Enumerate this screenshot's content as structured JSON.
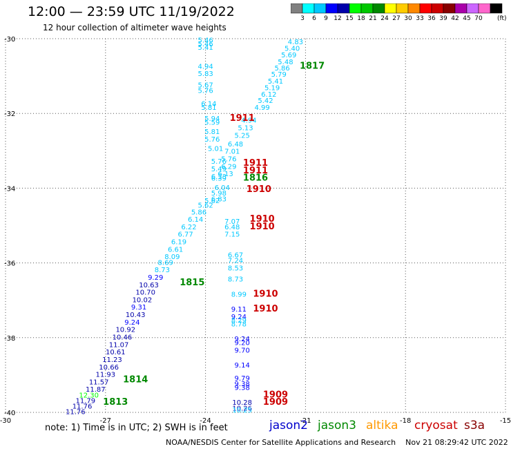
{
  "header": {
    "title": "12:00 — 23:59 UTC 11/19/2022",
    "subtitle": "12 hour collection of altimeter wave heights"
  },
  "colorbar": {
    "ticks": [
      "3",
      "6",
      "9",
      "12",
      "15",
      "18",
      "21",
      "24",
      "27",
      "30",
      "33",
      "36",
      "39",
      "42",
      "45",
      "70"
    ],
    "unit": "(ft)",
    "colors": [
      "#808080",
      "#00ffff",
      "#00c8ff",
      "#0000ff",
      "#0000aa",
      "#00ff00",
      "#00c800",
      "#008800",
      "#ffff00",
      "#ffcc00",
      "#ff8800",
      "#ff0000",
      "#cc0000",
      "#880000",
      "#aa00aa",
      "#cc66ff",
      "#ff66cc",
      "#000000"
    ]
  },
  "note": "note:  1) Time is in UTC;  2) SWH is in feet",
  "footer": "NOAA/NESDIS Center for Satellite Applications and Research    Nov 21 08:29:42 UTC 2022",
  "legend": [
    {
      "name": "jason2",
      "color": "#0000cc"
    },
    {
      "name": "jason3",
      "color": "#008800"
    },
    {
      "name": "altika",
      "color": "#ff9900"
    },
    {
      "name": "cryosat",
      "color": "#cc0000"
    },
    {
      "name": "s3a",
      "color": "#880000"
    }
  ],
  "chart_data": {
    "type": "scatter",
    "xlim": [
      -30,
      -15
    ],
    "ylim": [
      -40,
      -30
    ],
    "x_ticks": [
      "-30",
      "-27",
      "-24",
      "-21",
      "-18",
      "-15"
    ],
    "y_ticks": [
      "-30",
      "-32",
      "-34",
      "-36",
      "-38",
      "-40"
    ],
    "grid": true,
    "pass_labels": [
      {
        "text": "1817",
        "x": -20.8,
        "y": -30.8,
        "color": "#008800"
      },
      {
        "text": "1911",
        "x": -22.9,
        "y": -32.2,
        "color": "#cc0000"
      },
      {
        "text": "1911",
        "x": -22.5,
        "y": -33.4,
        "color": "#cc0000"
      },
      {
        "text": "1911",
        "x": -22.5,
        "y": -33.6,
        "color": "#cc0000"
      },
      {
        "text": "1816",
        "x": -22.5,
        "y": -33.8,
        "color": "#008800"
      },
      {
        "text": "1910",
        "x": -22.4,
        "y": -34.1,
        "color": "#cc0000"
      },
      {
        "text": "1910",
        "x": -22.3,
        "y": -34.9,
        "color": "#cc0000"
      },
      {
        "text": "1910",
        "x": -22.3,
        "y": -35.1,
        "color": "#cc0000"
      },
      {
        "text": "1815",
        "x": -24.4,
        "y": -36.6,
        "color": "#008800"
      },
      {
        "text": "1910",
        "x": -22.2,
        "y": -36.9,
        "color": "#cc0000"
      },
      {
        "text": "1910",
        "x": -22.2,
        "y": -37.3,
        "color": "#cc0000"
      },
      {
        "text": "1814",
        "x": -26.1,
        "y": -39.2,
        "color": "#008800"
      },
      {
        "text": "1813",
        "x": -26.7,
        "y": -39.8,
        "color": "#008800"
      },
      {
        "text": "1909",
        "x": -21.9,
        "y": -39.6,
        "color": "#cc0000"
      },
      {
        "text": "1909",
        "x": -21.9,
        "y": -39.8,
        "color": "#cc0000"
      }
    ],
    "points": [
      {
        "x": -21.3,
        "y": -30.15,
        "v": "4.83",
        "c": "#00c8ff"
      },
      {
        "x": -21.4,
        "y": -30.32,
        "v": "5.40",
        "c": "#00c8ff"
      },
      {
        "x": -21.5,
        "y": -30.5,
        "v": "5.69",
        "c": "#00c8ff"
      },
      {
        "x": -21.6,
        "y": -30.68,
        "v": "5.48",
        "c": "#00c8ff"
      },
      {
        "x": -21.7,
        "y": -30.85,
        "v": "5.86",
        "c": "#00c8ff"
      },
      {
        "x": -21.8,
        "y": -31.02,
        "v": "5.79",
        "c": "#00c8ff"
      },
      {
        "x": -21.9,
        "y": -31.2,
        "v": "5.41",
        "c": "#00c8ff"
      },
      {
        "x": -22.0,
        "y": -31.38,
        "v": "5.19",
        "c": "#00c8ff"
      },
      {
        "x": -22.1,
        "y": -31.55,
        "v": "6.12",
        "c": "#00c8ff"
      },
      {
        "x": -22.2,
        "y": -31.72,
        "v": "5.42",
        "c": "#00c8ff"
      },
      {
        "x": -22.3,
        "y": -31.9,
        "v": "4.99",
        "c": "#00c8ff"
      },
      {
        "x": -22.7,
        "y": -32.25,
        "v": "4.94",
        "c": "#00c8ff"
      },
      {
        "x": -22.8,
        "y": -32.45,
        "v": "5.13",
        "c": "#00c8ff"
      },
      {
        "x": -22.9,
        "y": -32.65,
        "v": "5.25",
        "c": "#00c8ff"
      },
      {
        "x": -23.1,
        "y": -32.88,
        "v": "6.48",
        "c": "#00c8ff"
      },
      {
        "x": -23.2,
        "y": -33.08,
        "v": "7.01",
        "c": "#00c8ff"
      },
      {
        "x": -23.3,
        "y": -33.28,
        "v": "5.76",
        "c": "#00c8ff"
      },
      {
        "x": -23.3,
        "y": -33.48,
        "v": "6.29",
        "c": "#00c8ff"
      },
      {
        "x": -23.4,
        "y": -33.68,
        "v": "6.13",
        "c": "#00c8ff"
      },
      {
        "x": -23.5,
        "y": -34.05,
        "v": "6.04",
        "c": "#00c8ff"
      },
      {
        "x": -23.6,
        "y": -34.2,
        "v": "5.98",
        "c": "#00c8ff"
      },
      {
        "x": -23.6,
        "y": -34.35,
        "v": "6.83",
        "c": "#00c8ff"
      },
      {
        "x": -23.8,
        "y": -34.4,
        "v": "5.62",
        "c": "#00c8ff"
      },
      {
        "x": -24.0,
        "y": -34.52,
        "v": "5.62",
        "c": "#00c8ff"
      },
      {
        "x": -24.2,
        "y": -34.7,
        "v": "5.86",
        "c": "#00c8ff"
      },
      {
        "x": -24.3,
        "y": -34.9,
        "v": "6.14",
        "c": "#00c8ff"
      },
      {
        "x": -24.5,
        "y": -35.1,
        "v": "6.22",
        "c": "#00c8ff"
      },
      {
        "x": -24.6,
        "y": -35.3,
        "v": "6.77",
        "c": "#00c8ff"
      },
      {
        "x": -24.8,
        "y": -35.5,
        "v": "6.19",
        "c": "#00c8ff"
      },
      {
        "x": -24.9,
        "y": -35.7,
        "v": "6.61",
        "c": "#00c8ff"
      },
      {
        "x": -25.0,
        "y": -35.9,
        "v": "8.09",
        "c": "#00c8ff"
      },
      {
        "x": -25.2,
        "y": -36.05,
        "v": "8.69",
        "c": "#00c8ff"
      },
      {
        "x": -25.3,
        "y": -36.25,
        "v": "8.73",
        "c": "#00c8ff"
      },
      {
        "x": -25.5,
        "y": -36.45,
        "v": "9.29",
        "c": "#0000ff"
      },
      {
        "x": -25.7,
        "y": -36.65,
        "v": "10.63",
        "c": "#0000aa"
      },
      {
        "x": -25.8,
        "y": -36.85,
        "v": "10.70",
        "c": "#0000aa"
      },
      {
        "x": -25.9,
        "y": -37.05,
        "v": "10.02",
        "c": "#0000aa"
      },
      {
        "x": -26.0,
        "y": -37.25,
        "v": "9.31",
        "c": "#0000ff"
      },
      {
        "x": -26.1,
        "y": -37.45,
        "v": "10.43",
        "c": "#0000aa"
      },
      {
        "x": -26.2,
        "y": -37.65,
        "v": "9.24",
        "c": "#0000ff"
      },
      {
        "x": -26.4,
        "y": -37.85,
        "v": "10.92",
        "c": "#0000aa"
      },
      {
        "x": -26.5,
        "y": -38.05,
        "v": "10.46",
        "c": "#0000aa"
      },
      {
        "x": -26.6,
        "y": -38.25,
        "v": "11.07",
        "c": "#0000aa"
      },
      {
        "x": -26.7,
        "y": -38.45,
        "v": "10.61",
        "c": "#0000aa"
      },
      {
        "x": -26.8,
        "y": -38.65,
        "v": "11.23",
        "c": "#0000aa"
      },
      {
        "x": -26.9,
        "y": -38.85,
        "v": "10.66",
        "c": "#0000aa"
      },
      {
        "x": -27.0,
        "y": -39.05,
        "v": "11.93",
        "c": "#0000aa"
      },
      {
        "x": -27.2,
        "y": -39.25,
        "v": "11.57",
        "c": "#0000aa"
      },
      {
        "x": -27.3,
        "y": -39.45,
        "v": "11.87",
        "c": "#0000aa"
      },
      {
        "x": -27.5,
        "y": -39.6,
        "v": "12.30",
        "c": "#00ff00"
      },
      {
        "x": -27.6,
        "y": -39.75,
        "v": "11.79",
        "c": "#0000aa"
      },
      {
        "x": -27.7,
        "y": -39.9,
        "v": "11.76",
        "c": "#0000aa"
      },
      {
        "x": -27.9,
        "y": -40.05,
        "v": "11.76",
        "c": "#0000aa"
      },
      {
        "x": -24.0,
        "y": -30.1,
        "v": "5.46",
        "c": "#00c8ff"
      },
      {
        "x": -24.0,
        "y": -30.2,
        "v": "5.46",
        "c": "#00c8ff"
      },
      {
        "x": -24.0,
        "y": -30.3,
        "v": "5.41",
        "c": "#00c8ff"
      },
      {
        "x": -24.0,
        "y": -30.8,
        "v": "4.94",
        "c": "#00c8ff"
      },
      {
        "x": -24.0,
        "y": -31.0,
        "v": "5.83",
        "c": "#00c8ff"
      },
      {
        "x": -24.0,
        "y": -31.3,
        "v": "5.67",
        "c": "#00c8ff"
      },
      {
        "x": -24.0,
        "y": -31.45,
        "v": "5.76",
        "c": "#00c8ff"
      },
      {
        "x": -23.9,
        "y": -31.8,
        "v": "6.14",
        "c": "#00c8ff"
      },
      {
        "x": -23.9,
        "y": -31.9,
        "v": "5.81",
        "c": "#00c8ff"
      },
      {
        "x": -23.8,
        "y": -32.2,
        "v": "5.94",
        "c": "#00c8ff"
      },
      {
        "x": -23.8,
        "y": -32.3,
        "v": "5.59",
        "c": "#00c8ff"
      },
      {
        "x": -23.8,
        "y": -32.55,
        "v": "5.81",
        "c": "#00c8ff"
      },
      {
        "x": -23.8,
        "y": -32.75,
        "v": "5.76",
        "c": "#00c8ff"
      },
      {
        "x": -23.7,
        "y": -33.0,
        "v": "5.01",
        "c": "#00c8ff"
      },
      {
        "x": -23.6,
        "y": -33.35,
        "v": "5.76",
        "c": "#00c8ff"
      },
      {
        "x": -23.6,
        "y": -33.55,
        "v": "5.49",
        "c": "#00c8ff"
      },
      {
        "x": -23.6,
        "y": -33.75,
        "v": "6.33",
        "c": "#00c8ff"
      },
      {
        "x": -23.6,
        "y": -33.8,
        "v": "6.39",
        "c": "#00c8ff"
      },
      {
        "x": -23.2,
        "y": -34.95,
        "v": "7.07",
        "c": "#00c8ff"
      },
      {
        "x": -23.2,
        "y": -35.1,
        "v": "6.48",
        "c": "#00c8ff"
      },
      {
        "x": -23.2,
        "y": -35.3,
        "v": "7.15",
        "c": "#00c8ff"
      },
      {
        "x": -23.1,
        "y": -35.85,
        "v": "6.67",
        "c": "#00c8ff"
      },
      {
        "x": -23.1,
        "y": -36.0,
        "v": "7.24",
        "c": "#00c8ff"
      },
      {
        "x": -23.1,
        "y": -36.2,
        "v": "8.53",
        "c": "#00c8ff"
      },
      {
        "x": -23.1,
        "y": -36.5,
        "v": "8.73",
        "c": "#00c8ff"
      },
      {
        "x": -23.0,
        "y": -36.9,
        "v": "8.99",
        "c": "#00c8ff"
      },
      {
        "x": -23.0,
        "y": -37.3,
        "v": "9.11",
        "c": "#0000ff"
      },
      {
        "x": -23.0,
        "y": -37.5,
        "v": "9.24",
        "c": "#0000ff"
      },
      {
        "x": -23.0,
        "y": -37.6,
        "v": "8.29",
        "c": "#00c8ff"
      },
      {
        "x": -23.0,
        "y": -37.7,
        "v": "8.78",
        "c": "#00c8ff"
      },
      {
        "x": -22.9,
        "y": -38.1,
        "v": "9.24",
        "c": "#0000ff"
      },
      {
        "x": -22.9,
        "y": -38.2,
        "v": "9.20",
        "c": "#0000ff"
      },
      {
        "x": -22.9,
        "y": -38.4,
        "v": "9.70",
        "c": "#0000ff"
      },
      {
        "x": -22.9,
        "y": -38.8,
        "v": "9.14",
        "c": "#0000ff"
      },
      {
        "x": -22.9,
        "y": -39.15,
        "v": "9.79",
        "c": "#0000ff"
      },
      {
        "x": -22.9,
        "y": -39.3,
        "v": "9.38",
        "c": "#0000ff"
      },
      {
        "x": -22.9,
        "y": -39.4,
        "v": "9.38",
        "c": "#0000ff"
      },
      {
        "x": -22.9,
        "y": -39.8,
        "v": "10.28",
        "c": "#0000aa"
      },
      {
        "x": -22.9,
        "y": -39.95,
        "v": "10.26",
        "c": "#0000aa"
      },
      {
        "x": -22.9,
        "y": -40.0,
        "v": "10.25",
        "c": "#00c8ff"
      }
    ]
  }
}
